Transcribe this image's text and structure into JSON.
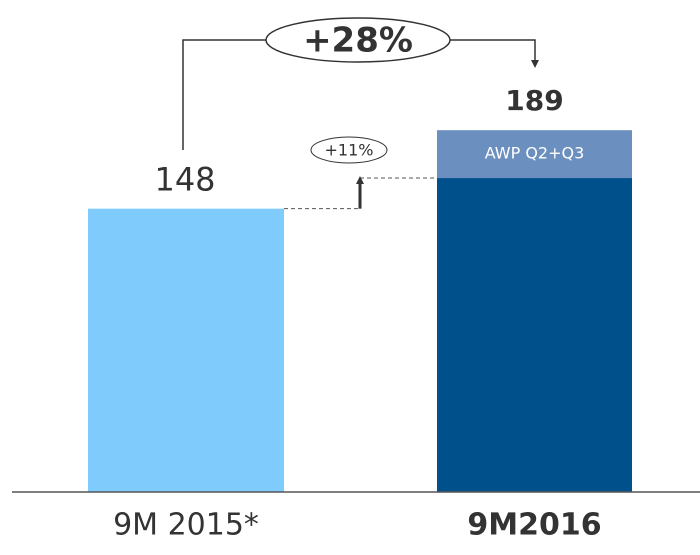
{
  "chart_data": {
    "type": "stacked_bar",
    "categories": [
      "9M 2015*",
      "9M2016"
    ],
    "series": [
      {
        "colors": [
          "#7fccfc",
          "#00508c"
        ],
        "values": [
          148,
          164
        ]
      },
      {
        "name": "AWP Q2+Q3",
        "color": "#6b8fbf",
        "values": [
          null,
          25
        ]
      }
    ],
    "totals": [
      148,
      189
    ],
    "annotations": [
      "+28%",
      "+11%"
    ],
    "ylim": [
      0,
      257
    ]
  }
}
